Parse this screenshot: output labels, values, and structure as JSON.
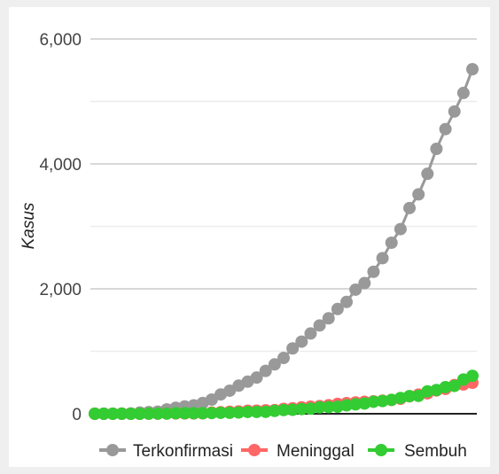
{
  "chart_data": {
    "type": "line",
    "title": "",
    "xlabel": "",
    "ylabel": "Kasus",
    "ylim": [
      0,
      6000
    ],
    "yticks": [
      {
        "value": 0,
        "label": "0"
      },
      {
        "value": 2000,
        "label": "2,000"
      },
      {
        "value": 4000,
        "label": "4,000"
      },
      {
        "value": 6000,
        "label": "6,000"
      }
    ],
    "grid": true,
    "legend_position": "bottom",
    "x": [
      1,
      2,
      3,
      4,
      5,
      6,
      7,
      8,
      9,
      10,
      11,
      12,
      13,
      14,
      15,
      16,
      17,
      18,
      19,
      20,
      21,
      22,
      23,
      24,
      25,
      26,
      27,
      28,
      29,
      30,
      31,
      32,
      33,
      34,
      35,
      36,
      37,
      38,
      39,
      40,
      41,
      42,
      43
    ],
    "series": [
      {
        "name": "Terkonfirmasi",
        "color": "#999999",
        "values": [
          2,
          2,
          2,
          4,
          6,
          19,
          27,
          34,
          69,
          96,
          117,
          134,
          172,
          227,
          309,
          369,
          450,
          514,
          579,
          686,
          790,
          893,
          1046,
          1155,
          1285,
          1414,
          1528,
          1677,
          1790,
          1986,
          2092,
          2273,
          2491,
          2738,
          2956,
          3293,
          3512,
          3842,
          4241,
          4557,
          4839,
          5136,
          5516
        ]
      },
      {
        "name": "Meninggal",
        "color": "#ff6666",
        "values": [
          0,
          0,
          0,
          0,
          0,
          0,
          1,
          1,
          4,
          5,
          5,
          5,
          7,
          19,
          25,
          32,
          38,
          48,
          49,
          55,
          58,
          78,
          87,
          102,
          114,
          122,
          136,
          157,
          170,
          181,
          191,
          198,
          209,
          221,
          240,
          280,
          306,
          327,
          373,
          399,
          459,
          469,
          496
        ]
      },
      {
        "name": "Sembuh",
        "color": "#33cc33",
        "values": [
          0,
          0,
          0,
          0,
          0,
          0,
          1,
          2,
          2,
          8,
          8,
          9,
          9,
          11,
          15,
          16,
          20,
          29,
          30,
          31,
          46,
          59,
          64,
          75,
          81,
          103,
          107,
          112,
          134,
          150,
          164,
          192,
          204,
          222,
          252,
          282,
          286,
          359,
          380,
          426,
          446,
          548,
          607
        ]
      }
    ]
  }
}
